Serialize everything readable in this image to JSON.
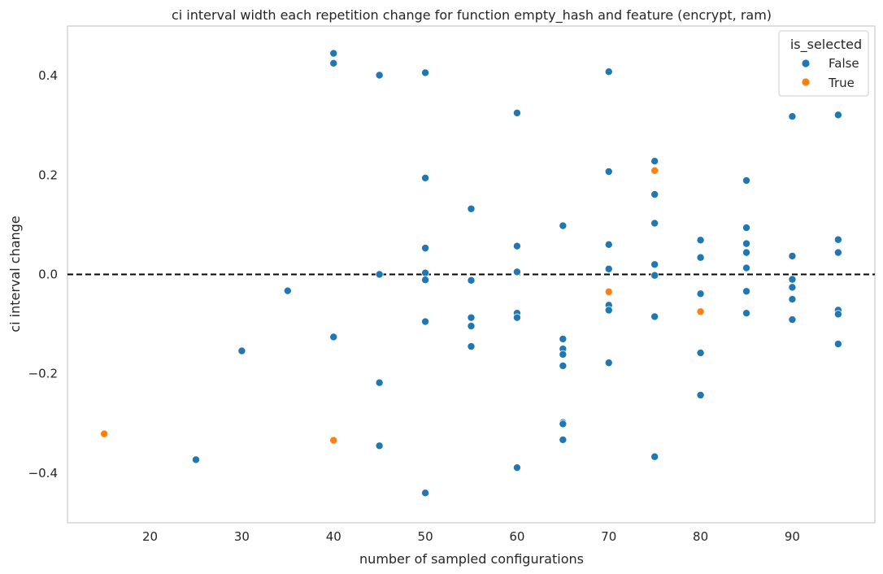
{
  "chart_data": {
    "type": "scatter",
    "title": "ci interval width each repetition change for function empty_hash and feature (encrypt, ram)",
    "xlabel": "number of sampled configurations",
    "ylabel": "ci interval change",
    "xlim": [
      11,
      99
    ],
    "ylim": [
      -0.5,
      0.5
    ],
    "xticks": [
      20,
      30,
      40,
      50,
      60,
      70,
      80,
      90
    ],
    "yticks": [
      -0.4,
      -0.2,
      0.0,
      0.2,
      0.4
    ],
    "ytick_labels": [
      "−0.4",
      "−0.2",
      "0.0",
      "0.2",
      "0.4"
    ],
    "grid": false,
    "hline": {
      "y": 0.0,
      "style": "dashed",
      "color": "#000000"
    },
    "legend": {
      "title": "is_selected",
      "placement": "top-right"
    },
    "series": [
      {
        "name": "False",
        "color": "#1f77b4",
        "points": [
          [
            25,
            -0.373
          ],
          [
            30,
            -0.154
          ],
          [
            35,
            -0.033
          ],
          [
            40,
            0.445
          ],
          [
            40,
            0.425
          ],
          [
            40,
            -0.126
          ],
          [
            45,
            0.401
          ],
          [
            45,
            0.0
          ],
          [
            45,
            -0.218
          ],
          [
            45,
            -0.345
          ],
          [
            50,
            0.406
          ],
          [
            50,
            0.194
          ],
          [
            50,
            0.053
          ],
          [
            50,
            0.003
          ],
          [
            50,
            -0.011
          ],
          [
            50,
            -0.095
          ],
          [
            50,
            -0.44
          ],
          [
            55,
            0.132
          ],
          [
            55,
            -0.012
          ],
          [
            55,
            -0.087
          ],
          [
            55,
            -0.104
          ],
          [
            55,
            -0.145
          ],
          [
            60,
            0.325
          ],
          [
            60,
            0.057
          ],
          [
            60,
            0.005
          ],
          [
            60,
            -0.078
          ],
          [
            60,
            -0.087
          ],
          [
            60,
            -0.389
          ],
          [
            65,
            0.098
          ],
          [
            65,
            -0.13
          ],
          [
            65,
            -0.15
          ],
          [
            65,
            -0.161
          ],
          [
            65,
            -0.184
          ],
          [
            65,
            -0.298
          ],
          [
            65,
            -0.301
          ],
          [
            65,
            -0.333
          ],
          [
            70,
            0.408
          ],
          [
            70,
            0.207
          ],
          [
            70,
            0.06
          ],
          [
            70,
            0.011
          ],
          [
            70,
            -0.062
          ],
          [
            70,
            -0.072
          ],
          [
            70,
            -0.178
          ],
          [
            75,
            0.228
          ],
          [
            75,
            0.161
          ],
          [
            75,
            0.103
          ],
          [
            75,
            0.02
          ],
          [
            75,
            -0.002
          ],
          [
            75,
            -0.085
          ],
          [
            75,
            -0.367
          ],
          [
            80,
            0.069
          ],
          [
            80,
            0.034
          ],
          [
            80,
            -0.039
          ],
          [
            80,
            -0.158
          ],
          [
            80,
            -0.243
          ],
          [
            85,
            0.189
          ],
          [
            85,
            0.094
          ],
          [
            85,
            0.062
          ],
          [
            85,
            0.044
          ],
          [
            85,
            0.013
          ],
          [
            85,
            -0.034
          ],
          [
            85,
            -0.078
          ],
          [
            90,
            0.318
          ],
          [
            90,
            0.037
          ],
          [
            90,
            -0.01
          ],
          [
            90,
            -0.026
          ],
          [
            90,
            -0.05
          ],
          [
            90,
            -0.091
          ],
          [
            95,
            0.321
          ],
          [
            95,
            0.07
          ],
          [
            95,
            0.044
          ],
          [
            95,
            -0.072
          ],
          [
            95,
            -0.08
          ],
          [
            95,
            -0.14
          ]
        ]
      },
      {
        "name": "True",
        "color": "#ff7f0e",
        "points": [
          [
            15,
            -0.321
          ],
          [
            40,
            -0.334
          ],
          [
            70,
            -0.035
          ],
          [
            75,
            0.209
          ],
          [
            80,
            -0.075
          ]
        ]
      }
    ]
  }
}
